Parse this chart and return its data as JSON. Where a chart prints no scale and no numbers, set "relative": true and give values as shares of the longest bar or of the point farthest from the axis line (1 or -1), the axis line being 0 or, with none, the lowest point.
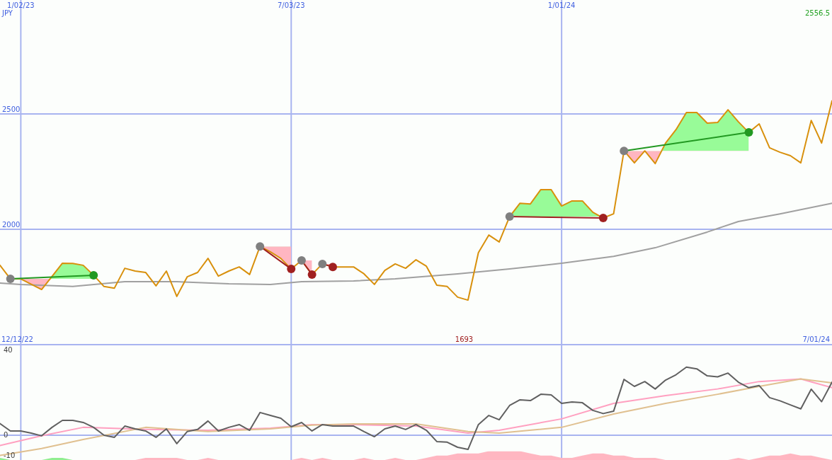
{
  "chart_data": [
    {
      "type": "line",
      "ylabel": "JPY",
      "xlim": [
        "2022-12-19",
        "2024-07-01"
      ],
      "ylim": [
        1500,
        2994
      ],
      "grid": true,
      "xticks": [
        {
          "value": "2023-01-02",
          "label": "1/02/23"
        },
        {
          "value": "2023-07-03",
          "label": "7/03/23"
        },
        {
          "value": "2024-01-01",
          "label": "1/01/24"
        }
      ],
      "yticks": [
        2000,
        2500
      ],
      "annotations": [
        "2556.5",
        "1693",
        "12/12/22",
        "7/01/24"
      ],
      "x": [
        "2022-12-19",
        "2022-12-26",
        "2023-01-02",
        "2023-01-09",
        "2023-01-16",
        "2023-01-23",
        "2023-01-30",
        "2023-02-06",
        "2023-02-13",
        "2023-02-20",
        "2023-02-27",
        "2023-03-06",
        "2023-03-13",
        "2023-03-20",
        "2023-03-27",
        "2023-04-03",
        "2023-04-10",
        "2023-04-17",
        "2023-04-24",
        "2023-05-01",
        "2023-05-08",
        "2023-05-15",
        "2023-05-22",
        "2023-05-29",
        "2023-06-05",
        "2023-06-12",
        "2023-06-19",
        "2023-06-26",
        "2023-07-03",
        "2023-07-10",
        "2023-07-17",
        "2023-07-24",
        "2023-07-31",
        "2023-08-07",
        "2023-08-14",
        "2023-08-21",
        "2023-08-28",
        "2023-09-04",
        "2023-09-11",
        "2023-09-18",
        "2023-09-25",
        "2023-10-02",
        "2023-10-09",
        "2023-10-16",
        "2023-10-23",
        "2023-10-30",
        "2023-11-06",
        "2023-11-13",
        "2023-11-20",
        "2023-11-27",
        "2023-12-04",
        "2023-12-11",
        "2023-12-18",
        "2023-12-25",
        "2024-01-01",
        "2024-01-08",
        "2024-01-15",
        "2024-01-22",
        "2024-01-29",
        "2024-02-05",
        "2024-02-12",
        "2024-02-19",
        "2024-02-26",
        "2024-03-04",
        "2024-03-11",
        "2024-03-18",
        "2024-03-25",
        "2024-04-01",
        "2024-04-08",
        "2024-04-15",
        "2024-04-22",
        "2024-04-29",
        "2024-05-06",
        "2024-05-13",
        "2024-05-20",
        "2024-05-27",
        "2024-06-03",
        "2024-06-10",
        "2024-06-17",
        "2024-06-24",
        "2024-07-01"
      ],
      "series": [
        {
          "color": "#a0a0a0",
          "x": [
            "2022-12-19",
            "2023-01-02",
            "2023-02-06",
            "2023-03-13",
            "2023-04-17",
            "2023-05-22",
            "2023-06-19",
            "2023-07-10",
            "2023-08-14",
            "2023-09-11",
            "2023-10-23",
            "2023-11-27",
            "2024-01-01",
            "2024-02-05",
            "2024-03-04",
            "2024-04-08",
            "2024-04-29",
            "2024-05-27",
            "2024-07-01"
          ],
          "values": [
            1767,
            1761,
            1752,
            1773,
            1773,
            1764,
            1761,
            1773,
            1776,
            1785,
            1807,
            1828,
            1853,
            1883,
            1920,
            1988,
            2034,
            2067,
            2113
          ]
        },
        {
          "color": "#d8900c",
          "values": [
            1844,
            1785,
            1785,
            1762,
            1739,
            1796,
            1853,
            1852,
            1844,
            1801,
            1752,
            1745,
            1831,
            1819,
            1813,
            1755,
            1819,
            1709,
            1794,
            1813,
            1874,
            1797,
            1819,
            1837,
            1804,
            1926,
            1902,
            1874,
            1828,
            1865,
            1804,
            1850,
            1837,
            1837,
            1837,
            1807,
            1761,
            1822,
            1850,
            1831,
            1868,
            1840,
            1758,
            1752,
            1706,
            1693,
            1899,
            1975,
            1945,
            2055,
            2113,
            2110,
            2172,
            2172,
            2101,
            2123,
            2123,
            2074,
            2049,
            2067,
            2340,
            2288,
            2340,
            2285,
            2374,
            2432,
            2506,
            2506,
            2460,
            2463,
            2518,
            2466,
            2420,
            2457,
            2353,
            2334,
            2319,
            2288,
            2472,
            2374,
            2556.5
          ]
        },
        {
          "color": "#229922",
          "marker": "circle",
          "colors": [
            "#808080",
            "#229922"
          ],
          "x": [
            "2022-12-26",
            "2023-02-20"
          ],
          "values": [
            1785,
            1801
          ]
        },
        {
          "color": "#a02020",
          "marker": "circle",
          "colors": [
            "#808080",
            "#a02020"
          ],
          "x": [
            "2023-06-12",
            "2023-07-03"
          ],
          "values": [
            1926,
            1828
          ]
        },
        {
          "color": "#a02020",
          "marker": "circle",
          "colors": [
            "#808080",
            "#a02020"
          ],
          "x": [
            "2023-07-10",
            "2023-07-17"
          ],
          "values": [
            1865,
            1804
          ]
        },
        {
          "color": "#a02020",
          "marker": "circle",
          "colors": [
            "#808080",
            "#a02020"
          ],
          "x": [
            "2023-07-24",
            "2023-07-31"
          ],
          "values": [
            1850,
            1837
          ]
        },
        {
          "color": "#a02020",
          "marker": "circle",
          "colors": [
            "#808080",
            "#a02020"
          ],
          "x": [
            "2023-11-27",
            "2024-01-29"
          ],
          "values": [
            2055,
            2049
          ]
        },
        {
          "color": "#229922",
          "marker": "circle",
          "colors": [
            "#808080",
            "#229922"
          ],
          "x": [
            "2024-02-12",
            "2024-05-06"
          ],
          "values": [
            2340,
            2420
          ]
        }
      ]
    },
    {
      "type": "line",
      "xlim": [
        "2022-12-19",
        "2024-07-01"
      ],
      "ylim": [
        -11.7,
        42.7
      ],
      "grid": "x",
      "tick_labels": "y",
      "xticks": [
        {
          "value": "2023-01-02",
          "label": null
        },
        {
          "value": "2023-07-03",
          "label": null
        },
        {
          "value": "2024-01-01",
          "label": null
        }
      ],
      "yticks": [
        -10,
        0,
        40
      ],
      "ref_lines": [
        {
          "axis": "y",
          "value": 0
        }
      ],
      "x": [
        "2022-12-19",
        "2022-12-26",
        "2023-01-02",
        "2023-01-09",
        "2023-01-16",
        "2023-01-23",
        "2023-01-30",
        "2023-02-06",
        "2023-02-13",
        "2023-02-20",
        "2023-02-27",
        "2023-03-06",
        "2023-03-13",
        "2023-03-20",
        "2023-03-27",
        "2023-04-03",
        "2023-04-10",
        "2023-04-17",
        "2023-04-24",
        "2023-05-01",
        "2023-05-08",
        "2023-05-15",
        "2023-05-22",
        "2023-05-29",
        "2023-06-05",
        "2023-06-12",
        "2023-06-19",
        "2023-06-26",
        "2023-07-03",
        "2023-07-10",
        "2023-07-17",
        "2023-07-24",
        "2023-07-31",
        "2023-08-07",
        "2023-08-14",
        "2023-08-21",
        "2023-08-28",
        "2023-09-04",
        "2023-09-11",
        "2023-09-18",
        "2023-09-25",
        "2023-10-02",
        "2023-10-09",
        "2023-10-16",
        "2023-10-23",
        "2023-10-30",
        "2023-11-06",
        "2023-11-13",
        "2023-11-20",
        "2023-11-27",
        "2023-12-04",
        "2023-12-11",
        "2023-12-18",
        "2023-12-25",
        "2024-01-01",
        "2024-01-08",
        "2024-01-15",
        "2024-01-22",
        "2024-01-29",
        "2024-02-05",
        "2024-02-12",
        "2024-02-19",
        "2024-02-26",
        "2024-03-04",
        "2024-03-11",
        "2024-03-18",
        "2024-03-25",
        "2024-04-01",
        "2024-04-08",
        "2024-04-15",
        "2024-04-22",
        "2024-04-29",
        "2024-05-06",
        "2024-05-13",
        "2024-05-20",
        "2024-05-27",
        "2024-06-03",
        "2024-06-10",
        "2024-06-17",
        "2024-06-24",
        "2024-07-01"
      ],
      "series": [
        {
          "color": "#ffa0c0",
          "x": [
            "2022-12-19",
            "2023-01-16",
            "2023-02-13",
            "2023-03-27",
            "2023-05-08",
            "2023-06-19",
            "2023-07-17",
            "2023-08-14",
            "2023-09-25",
            "2023-10-30",
            "2023-11-20",
            "2024-01-01",
            "2024-02-05",
            "2024-03-11",
            "2024-04-15",
            "2024-05-13",
            "2024-06-10",
            "2024-07-01"
          ],
          "values": [
            -4.9,
            -0.3,
            3.7,
            2.7,
            2.3,
            3.3,
            5,
            5,
            4.3,
            1,
            2.3,
            7.7,
            15,
            18.7,
            21.8,
            25.3,
            26.5,
            22.4
          ]
        },
        {
          "color": "#e0c090",
          "x": [
            "2022-12-19",
            "2023-01-16",
            "2023-02-13",
            "2023-03-27",
            "2023-05-08",
            "2023-06-19",
            "2023-07-17",
            "2023-08-14",
            "2023-09-25",
            "2023-10-30",
            "2023-11-20",
            "2024-01-01",
            "2024-02-05",
            "2024-03-11",
            "2024-04-15",
            "2024-05-13",
            "2024-06-10",
            "2024-07-01"
          ],
          "values": [
            -9.5,
            -6.3,
            -2,
            3.7,
            1.7,
            3,
            4.7,
            5.3,
            5.3,
            1.7,
            1,
            3.7,
            10,
            15,
            19.3,
            23,
            26.5,
            24.7
          ]
        },
        {
          "color": "#606060",
          "values": [
            5.5,
            2,
            2,
            1,
            -0.3,
            3.7,
            7,
            7,
            6,
            3.7,
            0,
            -1,
            4.3,
            3,
            2,
            -1,
            3,
            -4,
            1.7,
            2.7,
            6.7,
            2,
            3.7,
            5,
            2.3,
            10.7,
            9.3,
            8,
            4,
            6,
            2,
            5,
            4.3,
            4.3,
            4.3,
            1.7,
            -0.7,
            3,
            4.3,
            2.7,
            5,
            2.3,
            -3,
            -3.3,
            -5.7,
            -6.7,
            5,
            9.3,
            7.3,
            14,
            16.7,
            16.3,
            19.3,
            19,
            15,
            15.7,
            15.3,
            11.7,
            10.2,
            11.3,
            26.3,
            23,
            25.3,
            21.8,
            26,
            28.5,
            32.1,
            31.3,
            28,
            27.5,
            29.3,
            25,
            22.4,
            23.4,
            17.7,
            16.2,
            14.3,
            12.4,
            21.7,
            15.8,
            25
          ]
        }
      ]
    },
    {
      "type": "area",
      "relative": true,
      "tick_labels": false,
      "categories": [
        null,
        null,
        null,
        null,
        null,
        null,
        null,
        null,
        null,
        null,
        null,
        null,
        null,
        null,
        null,
        null,
        null,
        null,
        null,
        null,
        null,
        null,
        null,
        null,
        null,
        null,
        null,
        null,
        null,
        null,
        null,
        null,
        null,
        null,
        null,
        null,
        null,
        null,
        null,
        null,
        null,
        null,
        null,
        null,
        null,
        null,
        null,
        null,
        null,
        null,
        null,
        null,
        null,
        null,
        null,
        null,
        null,
        null,
        null,
        null,
        null,
        null,
        null,
        null,
        null,
        null,
        null,
        null,
        null,
        null,
        null,
        null,
        null,
        null,
        null,
        null,
        null,
        null,
        null,
        null,
        null
      ],
      "series": [
        {
          "color": "#90ee90",
          "values": [
            0.25,
            0,
            0,
            0,
            0,
            0.25,
            0.25,
            0,
            0,
            0,
            0,
            0,
            0,
            0,
            0,
            0,
            0,
            0,
            0,
            0,
            0,
            0,
            0,
            0,
            0,
            0,
            0,
            0,
            0,
            0,
            0,
            0,
            0,
            0,
            0,
            0,
            0,
            0,
            0,
            0,
            0,
            0,
            0,
            0,
            0,
            0,
            0,
            0,
            0,
            0,
            0,
            0,
            0,
            0,
            0,
            0,
            0,
            0,
            0,
            0,
            0,
            0,
            0,
            0,
            0,
            0,
            0,
            0,
            0,
            0,
            0,
            0,
            0,
            0,
            0,
            0,
            0,
            0,
            0,
            0,
            0
          ]
        },
        {
          "color": "#ffb6c1",
          "values": [
            0,
            0,
            0,
            0,
            0,
            0,
            0,
            0,
            0,
            0,
            0,
            0,
            0,
            0,
            0.25,
            0.25,
            0.25,
            0.25,
            0,
            0,
            0.25,
            0,
            0,
            0,
            0,
            0,
            0,
            0,
            0,
            0.25,
            0,
            0.25,
            0,
            0,
            0,
            0.25,
            0,
            0,
            0.25,
            0,
            0,
            0.25,
            0.5,
            0.5,
            0.75,
            0.75,
            0.75,
            1,
            1,
            1,
            1,
            0.75,
            0.5,
            0.5,
            0.25,
            0.25,
            0.5,
            0.75,
            0.75,
            0.5,
            0.5,
            0.25,
            0.25,
            0.25,
            0,
            0,
            0,
            0,
            0,
            0,
            0,
            0.25,
            0,
            0.25,
            0.5,
            0.5,
            0.75,
            0.5,
            0.5,
            0.25,
            0
          ]
        }
      ]
    }
  ]
}
